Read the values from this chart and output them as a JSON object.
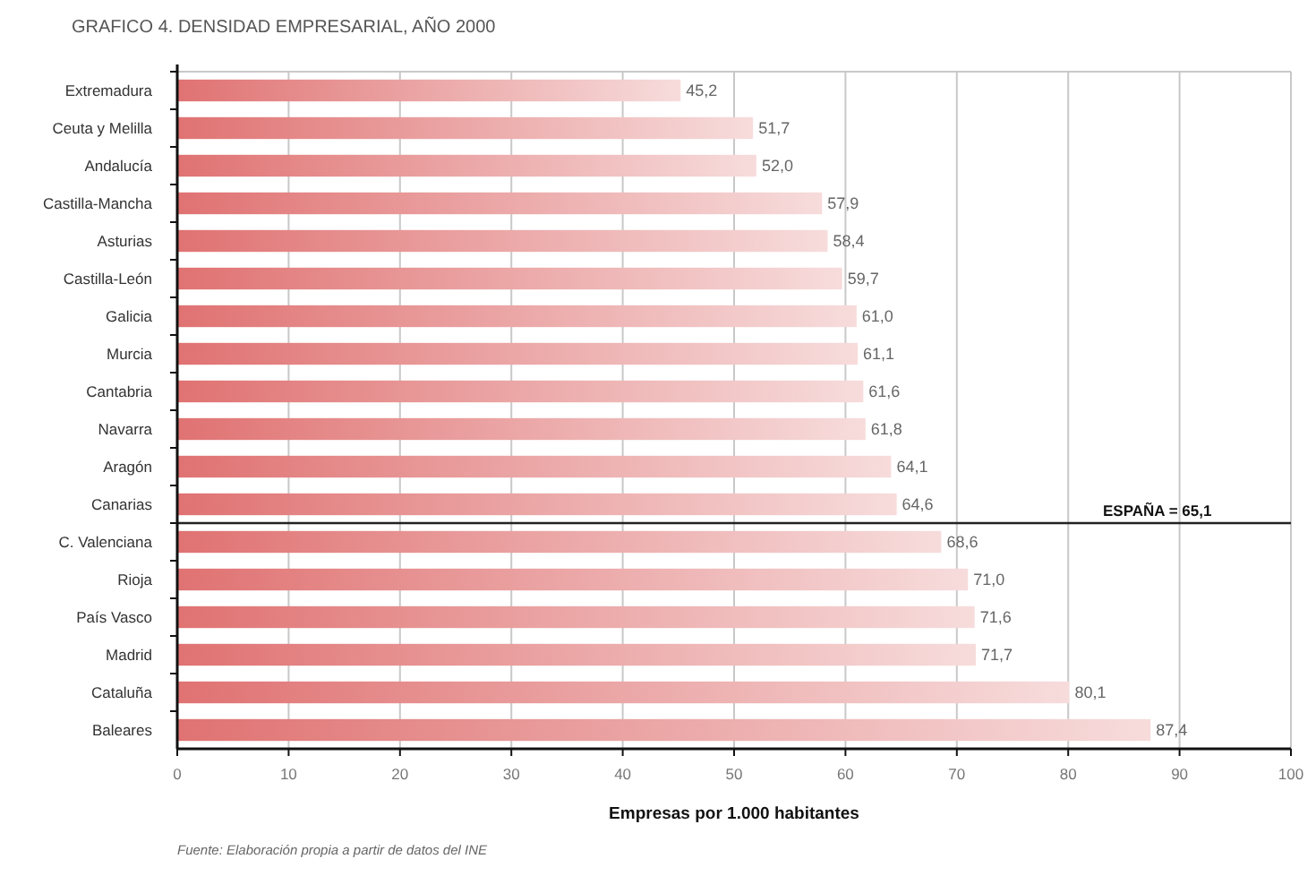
{
  "chart_data": {
    "type": "bar",
    "orientation": "horizontal",
    "title": "GRAFICO 4. DENSIDAD EMPRESARIAL, AÑO 2000",
    "categories": [
      "Extremadura",
      "Ceuta y Melilla",
      "Andalucía",
      "Castilla-Mancha",
      "Asturias",
      "Castilla-León",
      "Galicia",
      "Murcia",
      "Cantabria",
      "Navarra",
      "Aragón",
      "Canarias",
      "C. Valenciana",
      "Rioja",
      "País Vasco",
      "Madrid",
      "Cataluña",
      "Baleares"
    ],
    "values": [
      45.2,
      51.7,
      52.0,
      57.9,
      58.4,
      59.7,
      61.0,
      61.1,
      61.6,
      61.8,
      64.1,
      64.6,
      68.6,
      71.0,
      71.6,
      71.7,
      80.1,
      87.4
    ],
    "value_labels": [
      "45,2",
      "51,7",
      "52,0",
      "57,9",
      "58,4",
      "59,7",
      "61,0",
      "61,1",
      "61,6",
      "61,8",
      "64,1",
      "64,6",
      "68,6",
      "71,0",
      "71,6",
      "71,7",
      "80,1",
      "87,4"
    ],
    "color": "#e07272",
    "xlim": [
      0,
      100
    ],
    "xticks": [
      0,
      10,
      20,
      30,
      40,
      50,
      60,
      70,
      80,
      90,
      100
    ],
    "xlabel": "Empresas por 1.000 habitantes",
    "grid": "x",
    "ref_lines": [
      {
        "axis": "y",
        "value": "Canarias",
        "label": "ESPAÑA = 65,1"
      }
    ],
    "annotations": [
      "Fuente: Elaboración propia a partir de datos del INE"
    ]
  }
}
